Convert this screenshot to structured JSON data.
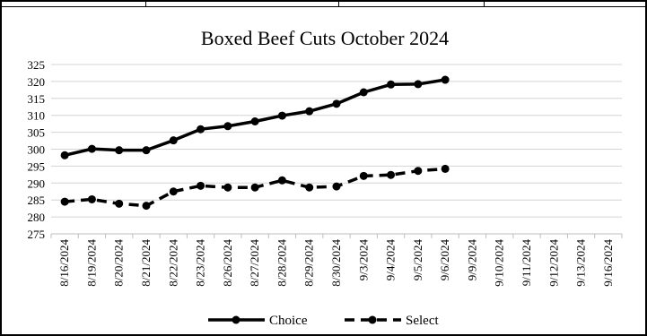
{
  "chart_data": {
    "type": "line",
    "title": "Boxed Beef Cuts October 2024",
    "xlabel": "",
    "ylabel": "",
    "categories": [
      "8/16/2024",
      "8/19/2024",
      "8/20/2024",
      "8/21/2024",
      "8/22/2024",
      "8/23/2024",
      "8/26/2024",
      "8/27/2024",
      "8/28/2024",
      "8/29/2024",
      "8/30/2024",
      "9/3/2024",
      "9/4/2024",
      "9/5/2024",
      "9/6/2024",
      "9/9/2024",
      "9/10/2024",
      "9/11/2024",
      "9/12/2024",
      "9/13/2024",
      "9/16/2024"
    ],
    "series": [
      {
        "name": "Choice",
        "style": "solid",
        "color": "#000000",
        "values": [
          298.2,
          300.1,
          299.7,
          299.7,
          302.6,
          305.9,
          306.8,
          308.2,
          309.9,
          311.2,
          313.4,
          316.8,
          319.1,
          319.2,
          320.5,
          null,
          null,
          null,
          null,
          null,
          null
        ]
      },
      {
        "name": "Select",
        "style": "dashed",
        "color": "#000000",
        "values": [
          284.5,
          285.2,
          283.9,
          283.3,
          287.5,
          289.2,
          288.7,
          288.7,
          290.8,
          288.7,
          289.0,
          292.1,
          292.4,
          293.6,
          294.2,
          null,
          null,
          null,
          null,
          null,
          null
        ]
      }
    ],
    "ylim": [
      275,
      325
    ],
    "yticks": [
      275,
      280,
      285,
      290,
      295,
      300,
      305,
      310,
      315,
      320,
      325
    ],
    "grid": true,
    "legend": "bottom"
  }
}
